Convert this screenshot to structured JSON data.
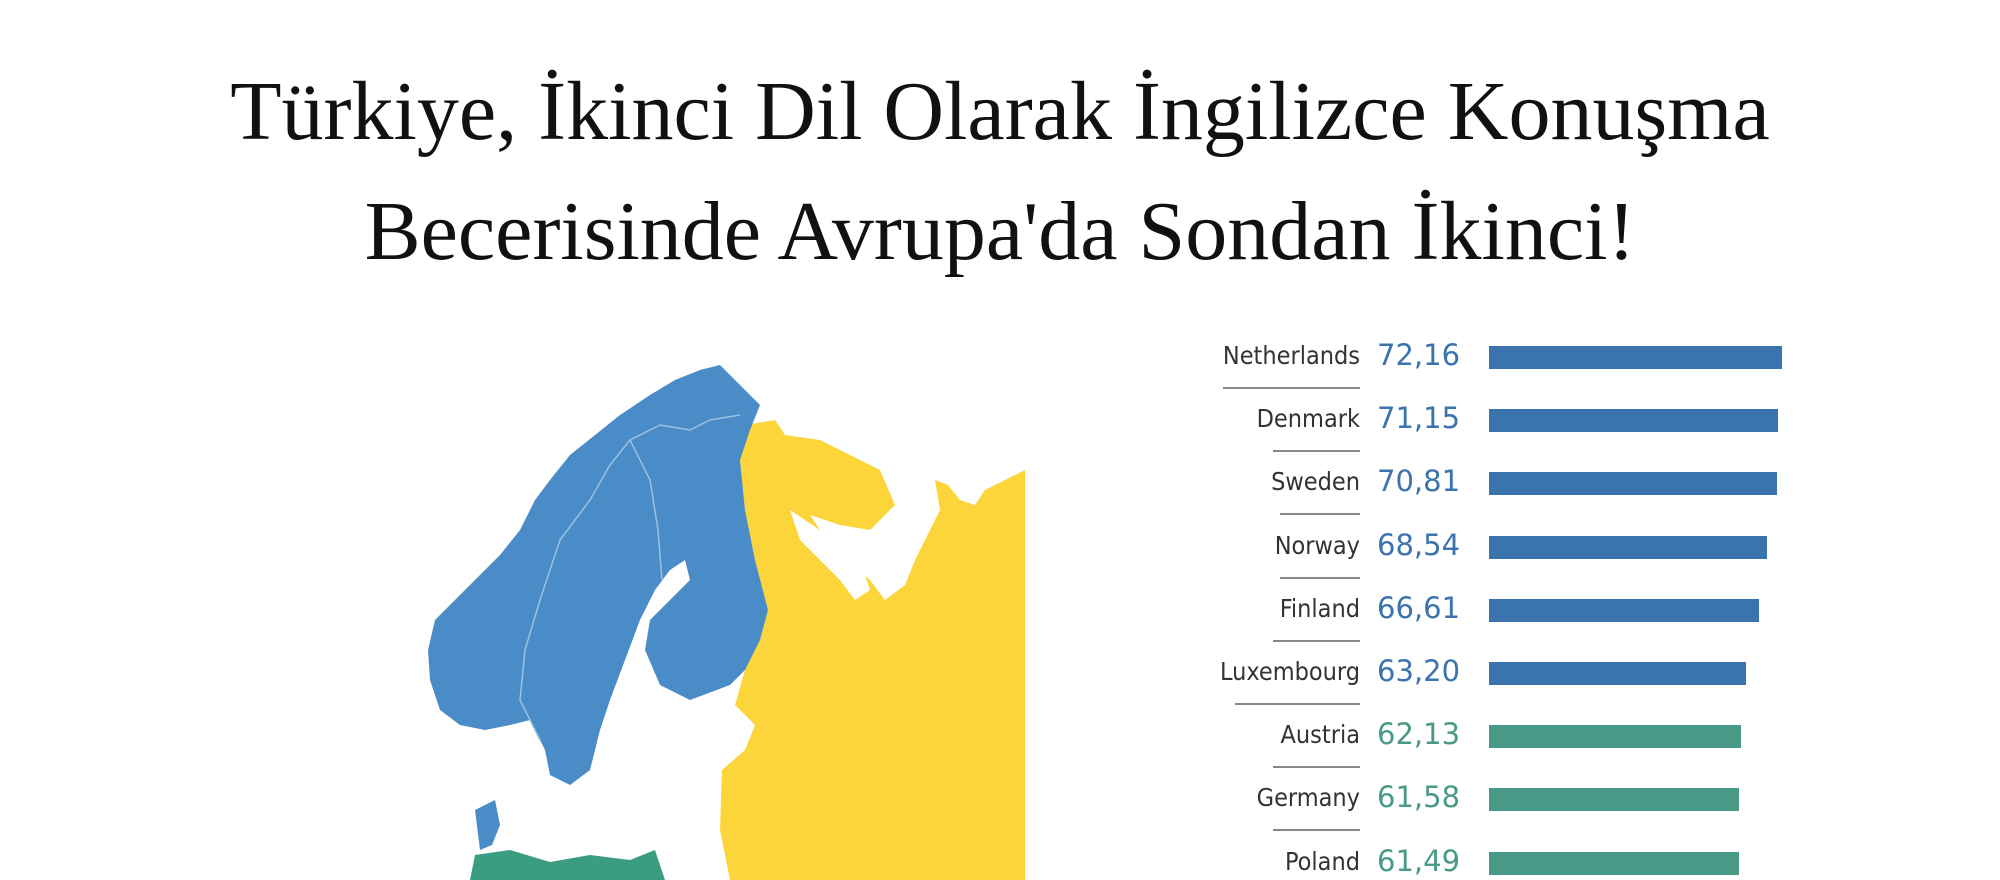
{
  "title_lines": [
    "Türkiye, İkinci Dil Olarak İngilizce Konuşma",
    "Becerisinde Avrupa'da Sondan İkinci!"
  ],
  "colors": {
    "high": "#3a73ad",
    "moderate": "#489a86",
    "map_blue": "#4a8cc8",
    "map_yellow": "#fcd53b",
    "map_green": "#3a9c80"
  },
  "chart_data": {
    "type": "bar",
    "orientation": "horizontal",
    "categories": [
      "Netherlands",
      "Denmark",
      "Sweden",
      "Norway",
      "Finland",
      "Luxembourg",
      "Austria",
      "Germany",
      "Poland"
    ],
    "values": [
      72.16,
      71.15,
      70.81,
      68.54,
      66.61,
      63.2,
      62.13,
      61.58,
      61.49
    ],
    "value_labels": [
      "72,16",
      "71,15",
      "70,81",
      "68,54",
      "66,61",
      "63,20",
      "62,13",
      "61,58",
      "61,49"
    ],
    "bar_colors": [
      "#3a73ad",
      "#3a73ad",
      "#3a73ad",
      "#3a73ad",
      "#3a73ad",
      "#3a73ad",
      "#489a86",
      "#489a86",
      "#489a86"
    ],
    "xlim": [
      0,
      72.16
    ],
    "grid": false,
    "title": ""
  }
}
